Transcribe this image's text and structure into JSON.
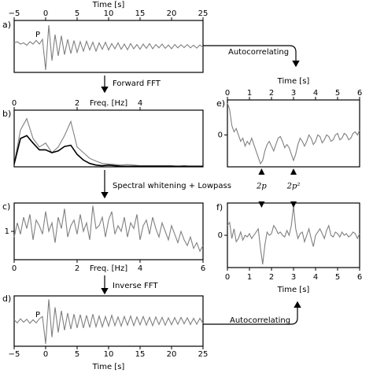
{
  "chart_data": [
    {
      "type": "line",
      "label": "a)",
      "annotation": "P",
      "xlabel": "Time [s]",
      "xlim": [
        -5,
        25
      ],
      "xticks": [
        {
          "value": -5,
          "label": "−5"
        },
        0,
        5,
        10,
        15,
        20,
        25
      ],
      "ylim": [
        -1.1,
        1.1
      ],
      "x": [
        -5,
        -4.5,
        -4,
        -3.5,
        -3,
        -2.5,
        -2,
        -1.5,
        -1,
        -0.5,
        0,
        0.5,
        1,
        1.5,
        2,
        2.5,
        3,
        3.5,
        4,
        4.5,
        5,
        5.5,
        6,
        6.5,
        7,
        7.5,
        8,
        8.5,
        9,
        9.5,
        10,
        10.5,
        11,
        11.5,
        12,
        12.5,
        13,
        13.5,
        14,
        14.5,
        15,
        15.5,
        16,
        16.5,
        17,
        17.5,
        18,
        18.5,
        19,
        19.5,
        20,
        20.5,
        21,
        21.5,
        22,
        22.5,
        23,
        23.5,
        24,
        24.5,
        25
      ],
      "series": [
        {
          "color": "#808080",
          "values": [
            0.15,
            0.2,
            0.1,
            0.15,
            0.05,
            0.2,
            0.1,
            0.25,
            0.1,
            0.3,
            -1.0,
            0.9,
            -0.6,
            0.5,
            -0.4,
            0.45,
            -0.35,
            0.3,
            -0.3,
            0.25,
            -0.25,
            0.2,
            -0.2,
            0.22,
            -0.15,
            0.18,
            -0.2,
            0.15,
            -0.12,
            0.18,
            -0.15,
            0.12,
            -0.1,
            0.15,
            -0.12,
            0.1,
            -0.14,
            0.12,
            -0.1,
            0.08,
            -0.12,
            0.1,
            -0.08,
            0.12,
            -0.1,
            0.08,
            -0.06,
            0.1,
            -0.08,
            0.06,
            -0.1,
            0.08,
            -0.06,
            0.07,
            -0.05,
            0.08,
            -0.06,
            0.05,
            -0.07,
            0.06,
            -0.04
          ]
        }
      ]
    },
    {
      "type": "line",
      "label": "b)",
      "xlabel": "Freq. [Hz]",
      "xlim": [
        0,
        6
      ],
      "xticks": [
        0,
        2,
        4
      ],
      "ylim": [
        0,
        1
      ],
      "x": [
        0,
        0.2,
        0.4,
        0.6,
        0.8,
        1,
        1.2,
        1.4,
        1.6,
        1.8,
        2,
        2.2,
        2.4,
        2.6,
        2.8,
        3,
        3.2,
        3.4,
        3.6,
        3.8,
        4,
        4.2,
        4.4,
        4.6,
        4.8,
        5,
        5.2,
        5.4,
        5.6,
        5.8,
        6
      ],
      "series": [
        {
          "color": "#808080",
          "values": [
            0.05,
            0.65,
            0.85,
            0.5,
            0.35,
            0.42,
            0.25,
            0.35,
            0.55,
            0.8,
            0.35,
            0.25,
            0.15,
            0.1,
            0.06,
            0.05,
            0.04,
            0.03,
            0.04,
            0.03,
            0.02,
            0.02,
            0.02,
            0.02,
            0.02,
            0.02,
            0.01,
            0.02,
            0.01,
            0.01,
            0.01
          ]
        },
        {
          "color": "#000000",
          "values": [
            0.05,
            0.5,
            0.55,
            0.42,
            0.3,
            0.3,
            0.25,
            0.28,
            0.36,
            0.38,
            0.22,
            0.12,
            0.06,
            0.03,
            0.02,
            0.03,
            0.02,
            0.01,
            0.01,
            0.01,
            0.01,
            0.01,
            0.01,
            0.01,
            0.01,
            0.01,
            0.01,
            0.01,
            0.01,
            0.01,
            0.01
          ]
        }
      ]
    },
    {
      "type": "line",
      "label": "c)",
      "xlabel": "Freq. [Hz]",
      "xlim": [
        0,
        6
      ],
      "xticks": [
        0,
        2,
        4,
        6
      ],
      "ylim": [
        0,
        2
      ],
      "yticks": [
        1
      ],
      "x": [
        0,
        0.1,
        0.2,
        0.3,
        0.4,
        0.5,
        0.6,
        0.7,
        0.8,
        0.9,
        1,
        1.1,
        1.2,
        1.3,
        1.4,
        1.5,
        1.6,
        1.7,
        1.8,
        1.9,
        2,
        2.1,
        2.2,
        2.3,
        2.4,
        2.5,
        2.6,
        2.7,
        2.8,
        2.9,
        3,
        3.1,
        3.2,
        3.3,
        3.4,
        3.5,
        3.6,
        3.7,
        3.8,
        3.9,
        4,
        4.1,
        4.2,
        4.3,
        4.4,
        4.5,
        4.6,
        4.7,
        4.8,
        4.9,
        5,
        5.1,
        5.2,
        5.3,
        5.4,
        5.5,
        5.6,
        5.7,
        5.8,
        5.9,
        6
      ],
      "series": [
        {
          "color": "#808080",
          "values": [
            0.8,
            1.3,
            0.9,
            1.5,
            1.1,
            1.6,
            0.7,
            1.4,
            1.2,
            0.9,
            1.7,
            1.0,
            1.3,
            0.6,
            1.5,
            1.1,
            1.8,
            0.8,
            1.2,
            1.4,
            0.9,
            1.6,
            1.0,
            1.3,
            0.7,
            1.9,
            1.1,
            1.2,
            1.5,
            0.8,
            1.4,
            1.7,
            0.9,
            1.2,
            1.0,
            1.5,
            0.8,
            1.3,
            1.1,
            1.6,
            0.7,
            1.2,
            1.4,
            0.9,
            1.5,
            1.1,
            0.8,
            1.3,
            1.0,
            0.7,
            1.2,
            0.9,
            0.6,
            1.0,
            0.7,
            0.5,
            0.8,
            0.4,
            0.6,
            0.3,
            0.5
          ]
        }
      ]
    },
    {
      "type": "line",
      "label": "d)",
      "annotation": "P",
      "xlabel": "Time [s]",
      "xlim": [
        -5,
        25
      ],
      "xticks": [
        {
          "value": -5,
          "label": "−5"
        },
        0,
        5,
        10,
        15,
        20,
        25
      ],
      "ylim": [
        -1.1,
        1.1
      ],
      "x": [
        -5,
        -4.5,
        -4,
        -3.5,
        -3,
        -2.5,
        -2,
        -1.5,
        -1,
        -0.5,
        0,
        0.5,
        1,
        1.5,
        2,
        2.5,
        3,
        3.5,
        4,
        4.5,
        5,
        5.5,
        6,
        6.5,
        7,
        7.5,
        8,
        8.5,
        9,
        9.5,
        10,
        10.5,
        11,
        11.5,
        12,
        12.5,
        13,
        13.5,
        14,
        14.5,
        15,
        15.5,
        16,
        16.5,
        17,
        17.5,
        18,
        18.5,
        19,
        19.5,
        20,
        20.5,
        21,
        21.5,
        22,
        22.5,
        23,
        23.5,
        24,
        24.5,
        25
      ],
      "series": [
        {
          "color": "#808080",
          "values": [
            0.05,
            -0.08,
            0.1,
            -0.05,
            0.08,
            -0.1,
            0.06,
            -0.08,
            0.1,
            0.2,
            -1.0,
            0.95,
            -0.7,
            0.6,
            -0.5,
            0.45,
            -0.4,
            0.35,
            -0.35,
            0.3,
            -0.3,
            0.28,
            -0.3,
            0.25,
            -0.28,
            0.3,
            -0.25,
            0.22,
            -0.25,
            0.2,
            -0.22,
            0.25,
            -0.2,
            0.18,
            -0.22,
            0.2,
            -0.18,
            0.22,
            -0.2,
            0.18,
            -0.16,
            0.2,
            -0.18,
            0.16,
            -0.2,
            0.18,
            -0.15,
            0.16,
            -0.18,
            0.14,
            -0.16,
            0.15,
            -0.14,
            0.16,
            -0.12,
            0.14,
            -0.15,
            0.12,
            -0.14,
            0.12,
            -0.1
          ]
        }
      ]
    },
    {
      "type": "line",
      "label": "e)",
      "xlabel": "Time [s]",
      "xlim": [
        0,
        6
      ],
      "xticks": [
        0,
        1,
        2,
        3,
        4,
        5,
        6
      ],
      "ylim": [
        -1,
        1.1
      ],
      "yticks": [
        0
      ],
      "x": [
        0,
        0.1,
        0.2,
        0.3,
        0.4,
        0.5,
        0.6,
        0.7,
        0.8,
        0.9,
        1,
        1.1,
        1.2,
        1.3,
        1.4,
        1.5,
        1.6,
        1.7,
        1.8,
        1.9,
        2,
        2.1,
        2.2,
        2.3,
        2.4,
        2.5,
        2.6,
        2.7,
        2.8,
        2.9,
        3,
        3.1,
        3.2,
        3.3,
        3.4,
        3.5,
        3.6,
        3.7,
        3.8,
        3.9,
        4,
        4.1,
        4.2,
        4.3,
        4.4,
        4.5,
        4.6,
        4.7,
        4.8,
        4.9,
        5,
        5.1,
        5.2,
        5.3,
        5.4,
        5.5,
        5.6,
        5.7,
        5.8,
        5.9,
        6
      ],
      "series": [
        {
          "color": "#808080",
          "values": [
            1.0,
            0.8,
            0.3,
            0.1,
            0.2,
            0.0,
            -0.2,
            -0.1,
            -0.35,
            -0.2,
            -0.3,
            -0.1,
            -0.3,
            -0.5,
            -0.7,
            -0.9,
            -0.8,
            -0.5,
            -0.3,
            -0.2,
            -0.35,
            -0.5,
            -0.3,
            -0.1,
            -0.05,
            -0.2,
            -0.4,
            -0.3,
            -0.4,
            -0.6,
            -0.8,
            -0.6,
            -0.3,
            -0.1,
            -0.2,
            -0.35,
            -0.2,
            0.0,
            -0.1,
            -0.3,
            -0.2,
            0.0,
            -0.05,
            -0.25,
            -0.15,
            0.0,
            -0.05,
            -0.2,
            -0.15,
            0.0,
            0.05,
            -0.15,
            -0.1,
            0.05,
            0.0,
            -0.15,
            -0.1,
            0.05,
            0.1,
            0.0,
            0.15
          ]
        }
      ]
    },
    {
      "type": "line",
      "label": "f)",
      "xlabel": "Time [s]",
      "xlim": [
        0,
        6
      ],
      "xticks": [
        0,
        1,
        2,
        3,
        4,
        5,
        6
      ],
      "ylim": [
        -1,
        1
      ],
      "yticks": [
        0
      ],
      "x": [
        0,
        0.1,
        0.2,
        0.3,
        0.4,
        0.5,
        0.6,
        0.7,
        0.8,
        0.9,
        1,
        1.1,
        1.2,
        1.3,
        1.4,
        1.5,
        1.6,
        1.7,
        1.8,
        1.9,
        2,
        2.1,
        2.2,
        2.3,
        2.4,
        2.5,
        2.6,
        2.7,
        2.8,
        2.9,
        3,
        3.1,
        3.2,
        3.3,
        3.4,
        3.5,
        3.6,
        3.7,
        3.8,
        3.9,
        4,
        4.1,
        4.2,
        4.3,
        4.4,
        4.5,
        4.6,
        4.7,
        4.8,
        4.9,
        5,
        5.1,
        5.2,
        5.3,
        5.4,
        5.5,
        5.6,
        5.7,
        5.8,
        5.9,
        6
      ],
      "series": [
        {
          "color": "#808080",
          "values": [
            0.3,
            0.4,
            -0.1,
            0.2,
            -0.2,
            -0.1,
            0.1,
            -0.15,
            0.0,
            -0.05,
            0.05,
            -0.1,
            0.0,
            0.1,
            0.2,
            -0.4,
            -0.9,
            -0.3,
            0.1,
            0.0,
            0.05,
            0.3,
            0.2,
            0.05,
            0.1,
            0.0,
            -0.05,
            0.15,
            0.0,
            0.3,
            0.9,
            0.2,
            -0.1,
            0.05,
            0.1,
            -0.2,
            0.0,
            0.2,
            -0.1,
            -0.35,
            0.0,
            0.1,
            0.2,
            0.05,
            -0.1,
            0.15,
            0.3,
            0.0,
            -0.05,
            0.1,
            0.05,
            -0.05,
            0.1,
            0.0,
            0.05,
            -0.05,
            0.0,
            0.1,
            0.05,
            -0.1,
            0.05
          ]
        }
      ]
    }
  ],
  "flow": [
    "Autocorrelating",
    "Forward FFT",
    "Spectral whitening + Lowpass",
    "Inverse FFT",
    "Autocorrelating"
  ],
  "markers": [
    {
      "x": 1.55,
      "label": "2p"
    },
    {
      "x": 3.0,
      "label": "2p²"
    }
  ]
}
